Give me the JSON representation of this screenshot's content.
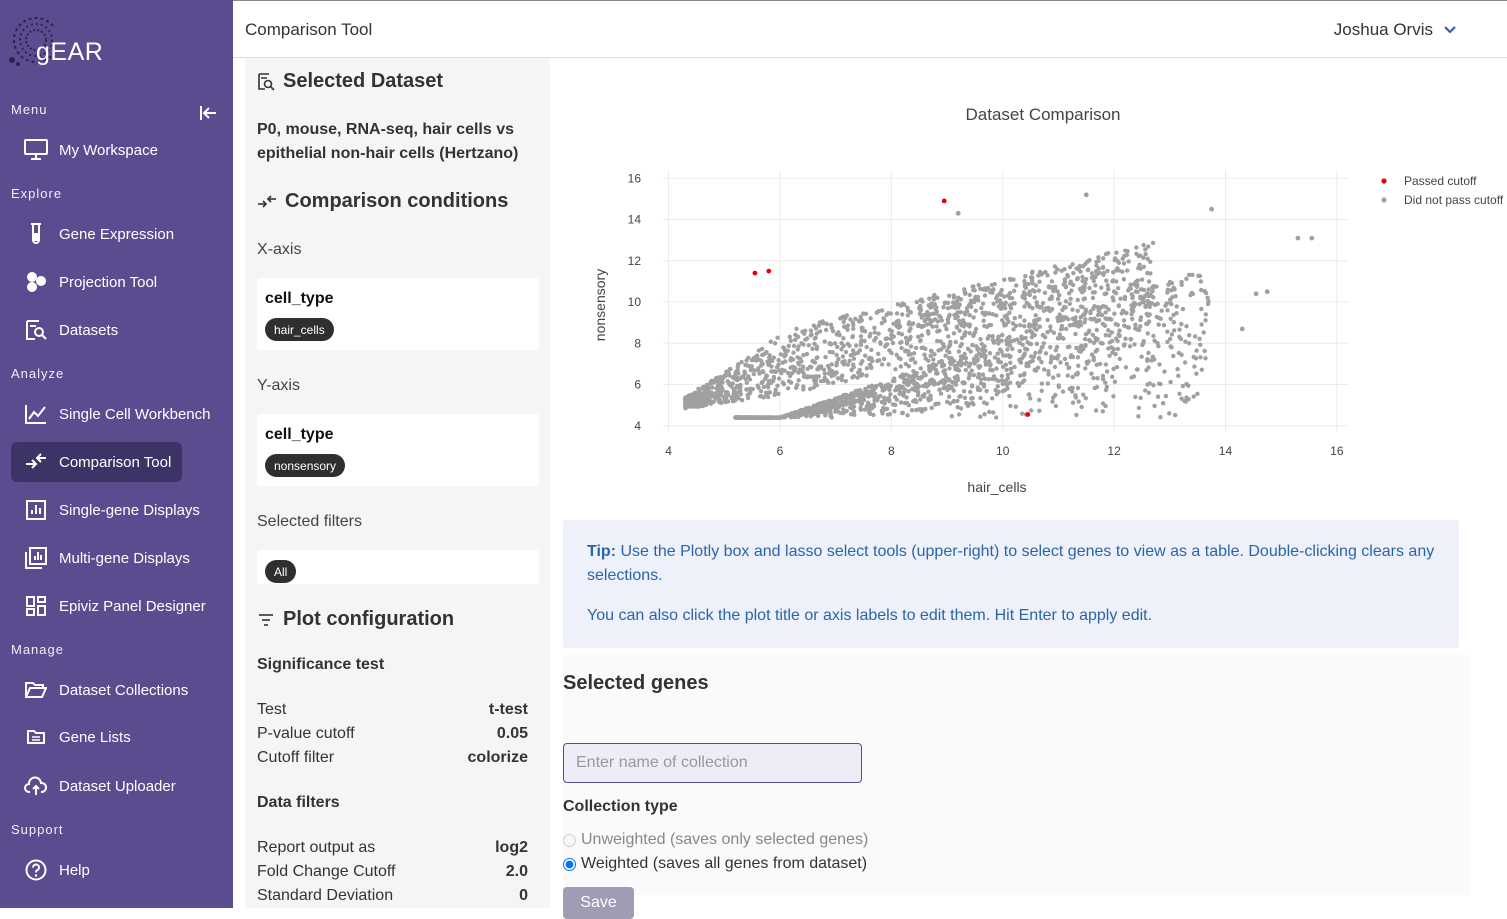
{
  "app": {
    "logo_text": "gEAR"
  },
  "header": {
    "title": "Comparison Tool",
    "user_name": "Joshua Orvis"
  },
  "sidebar": {
    "sections": [
      "Menu",
      "Explore",
      "Analyze",
      "Manage",
      "Support"
    ],
    "items": [
      {
        "label": "My Workspace",
        "icon": "monitor-icon"
      },
      {
        "label": "Gene Expression",
        "icon": "test-tube-icon"
      },
      {
        "label": "Projection Tool",
        "icon": "circles-icon"
      },
      {
        "label": "Datasets",
        "icon": "dataset-search-icon"
      },
      {
        "label": "Single Cell Workbench",
        "icon": "line-chart-icon"
      },
      {
        "label": "Comparison Tool",
        "icon": "compare-arrows-icon",
        "active": true
      },
      {
        "label": "Single-gene Displays",
        "icon": "bar-chart-icon"
      },
      {
        "label": "Multi-gene Displays",
        "icon": "multi-chart-icon"
      },
      {
        "label": "Epiviz Panel Designer",
        "icon": "grid-icon"
      },
      {
        "label": "Dataset Collections",
        "icon": "folder-open-icon"
      },
      {
        "label": "Gene Lists",
        "icon": "folder-list-icon"
      },
      {
        "label": "Dataset Uploader",
        "icon": "cloud-upload-icon"
      },
      {
        "label": "Help",
        "icon": "help-icon"
      }
    ]
  },
  "config": {
    "selected_dataset_heading": "Selected Dataset",
    "dataset_name": "P0, mouse, RNA-seq, hair cells vs epithelial non-hair cells (Hertzano)",
    "conditions_heading": "Comparison conditions",
    "x_axis_label": "X-axis",
    "x_axis_field": "cell_type",
    "x_axis_value": "hair_cells",
    "y_axis_label": "Y-axis",
    "y_axis_field": "cell_type",
    "y_axis_value": "nonsensory",
    "filters_label": "Selected filters",
    "filters_value": "All",
    "plot_config_heading": "Plot configuration",
    "significance_heading": "Significance test",
    "significance": [
      {
        "key": "Test",
        "value": "t-test"
      },
      {
        "key": "P-value cutoff",
        "value": "0.05"
      },
      {
        "key": "Cutoff filter",
        "value": "colorize"
      }
    ],
    "data_filters_heading": "Data filters",
    "data_filters": [
      {
        "key": "Report output as",
        "value": "log2"
      },
      {
        "key": "Fold Change Cutoff",
        "value": "2.0"
      },
      {
        "key": "Standard Deviation",
        "value": "0"
      }
    ]
  },
  "chart_data": {
    "type": "scatter",
    "title": "Dataset Comparison",
    "xlabel": "hair_cells",
    "ylabel": "nonsensory",
    "xlim": [
      3.9,
      16.2
    ],
    "ylim": [
      3.7,
      16.4
    ],
    "xticks": [
      4,
      6,
      8,
      10,
      12,
      14,
      16
    ],
    "yticks": [
      4,
      6,
      8,
      10,
      12,
      14,
      16
    ],
    "grid": true,
    "legend_position": "top-right",
    "series": [
      {
        "name": "Passed cutoff",
        "color": "#e6000f",
        "points": [
          [
            8.95,
            14.9
          ],
          [
            5.55,
            11.4
          ],
          [
            5.8,
            11.5
          ],
          [
            10.45,
            4.55
          ]
        ]
      },
      {
        "name": "Did not pass cutoff",
        "color": "#a0a0a0",
        "points": [
          [
            11.5,
            15.2
          ],
          [
            9.2,
            14.3
          ],
          [
            15.3,
            13.1
          ],
          [
            15.55,
            13.1
          ],
          [
            13.75,
            14.5
          ],
          [
            14.75,
            10.5
          ],
          [
            14.55,
            10.4
          ],
          [
            14.3,
            8.7
          ],
          [
            12.3,
            8.2
          ],
          [
            11.4,
            7.6
          ]
        ]
      }
    ]
  },
  "tip": {
    "label": "Tip:",
    "text": " Use the Plotly box and lasso select tools (upper-right) to select genes to view as a table. Double-clicking clears any selections.",
    "text2": "You can also click the plot title or axis labels to edit them. Hit Enter to apply edit."
  },
  "genes": {
    "title": "Selected genes",
    "collection_placeholder": "Enter name of collection",
    "collection_type_label": "Collection type",
    "unweighted_label": "Unweighted (saves only selected genes)",
    "weighted_label": "Weighted (saves all genes from dataset)",
    "save_label": "Save"
  }
}
